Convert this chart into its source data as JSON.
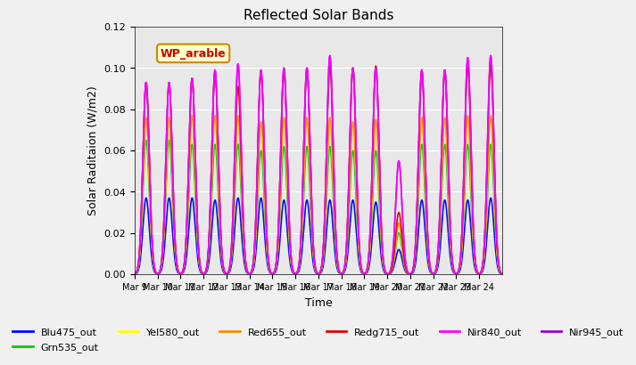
{
  "title": "Reflected Solar Bands",
  "xlabel": "Time",
  "ylabel": "Solar Raditaion (W/m2)",
  "ylim": [
    0,
    0.12
  ],
  "yticks": [
    0.0,
    0.02,
    0.04,
    0.06,
    0.08,
    0.1,
    0.12
  ],
  "xtick_labels": [
    "Mar 9",
    "Mar 10",
    "Mar 11",
    "Mar 12",
    "Mar 13",
    "Mar 14",
    "Mar 15",
    "Mar 16",
    "Mar 17",
    "Mar 18",
    "Mar 19",
    "Mar 20",
    "Mar 21",
    "Mar 22",
    "Mar 23",
    "Mar 24"
  ],
  "annotation_text": "WP_arable",
  "annotation_color": "#cc0000",
  "annotation_bg": "#ffffcc",
  "annotation_border": "#cc8800",
  "legend_entries": [
    {
      "label": "Blu475_out",
      "color": "#0000ff"
    },
    {
      "label": "Grn535_out",
      "color": "#00cc00"
    },
    {
      "label": "Yel580_out",
      "color": "#ffff00"
    },
    {
      "label": "Red655_out",
      "color": "#ff8800"
    },
    {
      "label": "Redg715_out",
      "color": "#dd0000"
    },
    {
      "label": "Nir840_out",
      "color": "#ff00ff"
    },
    {
      "label": "Nir945_out",
      "color": "#9900cc"
    }
  ],
  "band_peaks": {
    "Blu475_out": [
      0.037,
      0.037,
      0.037,
      0.036,
      0.037,
      0.037,
      0.036,
      0.036,
      0.036,
      0.036,
      0.035,
      0.012,
      0.036,
      0.036,
      0.036,
      0.037
    ],
    "Grn535_out": [
      0.065,
      0.065,
      0.063,
      0.063,
      0.063,
      0.06,
      0.062,
      0.062,
      0.062,
      0.06,
      0.06,
      0.02,
      0.063,
      0.063,
      0.063,
      0.063
    ],
    "Yel580_out": [
      0.074,
      0.074,
      0.075,
      0.075,
      0.075,
      0.072,
      0.074,
      0.074,
      0.074,
      0.072,
      0.073,
      0.024,
      0.074,
      0.074,
      0.075,
      0.075
    ],
    "Red655_out": [
      0.076,
      0.076,
      0.077,
      0.077,
      0.077,
      0.074,
      0.076,
      0.076,
      0.076,
      0.074,
      0.075,
      0.025,
      0.076,
      0.076,
      0.077,
      0.077
    ],
    "Redg715_out": [
      0.093,
      0.092,
      0.095,
      0.098,
      0.091,
      0.098,
      0.098,
      0.1,
      0.101,
      0.1,
      0.101,
      0.03,
      0.099,
      0.099,
      0.1,
      0.101
    ],
    "Nir840_out": [
      0.093,
      0.093,
      0.095,
      0.099,
      0.102,
      0.099,
      0.1,
      0.1,
      0.106,
      0.1,
      0.1,
      0.055,
      0.099,
      0.099,
      0.105,
      0.106
    ],
    "Nir945_out": [
      0.093,
      0.093,
      0.095,
      0.099,
      0.102,
      0.099,
      0.1,
      0.1,
      0.106,
      0.1,
      0.1,
      0.055,
      0.099,
      0.099,
      0.105,
      0.106
    ]
  },
  "plot_bg_color": "#e8e8e8",
  "fig_bg_color": "#f0f0f0"
}
